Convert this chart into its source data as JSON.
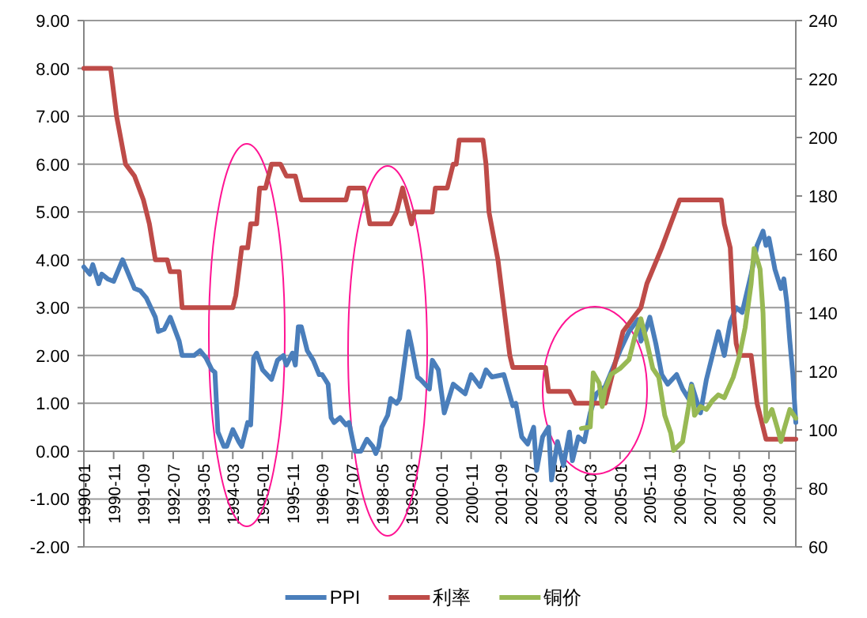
{
  "chart_data": {
    "type": "line",
    "xlim": [
      "1990-01",
      "2009-12"
    ],
    "xticks": [
      "1990-01",
      "1990-11",
      "1991-09",
      "1992-07",
      "1993-05",
      "1994-03",
      "1995-01",
      "1995-11",
      "1996-09",
      "1997-07",
      "1998-05",
      "1999-03",
      "2000-01",
      "2000-11",
      "2001-09",
      "2002-07",
      "2003-05",
      "2004-03",
      "2005-01",
      "2005-11",
      "2006-09",
      "2007-07",
      "2008-05",
      "2009-03"
    ],
    "ylim": [
      -2,
      9
    ],
    "yticks": [
      {
        "value": -2,
        "label": "-2.00"
      },
      {
        "value": -1,
        "label": "-1.00"
      },
      {
        "value": 0,
        "label": "0.00"
      },
      {
        "value": 1,
        "label": "1.00"
      },
      {
        "value": 2,
        "label": "2.00"
      },
      {
        "value": 3,
        "label": "3.00"
      },
      {
        "value": 4,
        "label": "4.00"
      },
      {
        "value": 5,
        "label": "5.00"
      },
      {
        "value": 6,
        "label": "6.00"
      },
      {
        "value": 7,
        "label": "7.00"
      },
      {
        "value": 8,
        "label": "8.00"
      },
      {
        "value": 9,
        "label": "9.00"
      }
    ],
    "y2lim": [
      60,
      240
    ],
    "y2ticks": [
      60,
      80,
      100,
      120,
      140,
      160,
      180,
      200,
      220,
      240
    ],
    "grid": "y",
    "legend": "bottom",
    "series": [
      {
        "name": "PPI",
        "color": "#4a7ebb",
        "x": [
          "1990-01",
          "1990-03",
          "1990-04",
          "1990-06",
          "1990-07",
          "1990-09",
          "1990-11",
          "1991-02",
          "1991-03",
          "1991-06",
          "1991-08",
          "1991-10",
          "1992-01",
          "1992-02",
          "1992-04",
          "1992-06",
          "1992-09",
          "1992-10",
          "1993-02",
          "1993-04",
          "1993-06",
          "1993-08",
          "1993-09",
          "1993-10",
          "1993-12",
          "1994-01",
          "1994-03",
          "1994-05",
          "1994-06",
          "1994-08",
          "1994-09",
          "1994-10",
          "1994-11",
          "1995-01",
          "1995-04",
          "1995-06",
          "1995-08",
          "1995-09",
          "1995-11",
          "1995-12",
          "1996-01",
          "1996-02",
          "1996-04",
          "1996-06",
          "1996-08",
          "1996-09",
          "1996-11",
          "1996-12",
          "1997-01",
          "1997-03",
          "1997-05",
          "1997-06",
          "1997-08",
          "1997-10",
          "1997-12",
          "1998-02",
          "1998-03",
          "1998-04",
          "1998-05",
          "1998-07",
          "1998-08",
          "1998-10",
          "1998-11",
          "1999-02",
          "1999-03",
          "1999-05",
          "1999-06",
          "1999-09",
          "1999-10",
          "1999-12",
          "2000-02",
          "2000-05",
          "2000-09",
          "2000-11",
          "2001-02",
          "2001-04",
          "2001-06",
          "2001-10",
          "2002-01",
          "2002-02",
          "2002-04",
          "2002-06",
          "2002-08",
          "2002-09",
          "2002-11",
          "2003-01",
          "2003-02",
          "2003-04",
          "2003-06",
          "2003-08",
          "2003-09",
          "2003-11",
          "2004-01",
          "2004-03",
          "2004-05",
          "2004-08",
          "2004-11",
          "2005-01",
          "2005-04",
          "2005-07",
          "2005-08",
          "2005-10",
          "2005-11",
          "2006-01",
          "2006-03",
          "2006-05",
          "2006-08",
          "2006-10",
          "2006-12",
          "2007-01",
          "2007-04",
          "2007-06",
          "2007-08",
          "2007-10",
          "2007-12",
          "2008-02",
          "2008-04",
          "2008-06",
          "2008-09",
          "2008-11",
          "2009-01",
          "2009-02",
          "2009-03",
          "2009-05",
          "2009-07",
          "2009-08",
          "2009-09",
          "2009-10",
          "2009-11",
          "2009-12"
        ],
        "values": [
          3.85,
          3.7,
          3.9,
          3.5,
          3.7,
          3.6,
          3.55,
          4.0,
          3.85,
          3.4,
          3.35,
          3.2,
          2.8,
          2.5,
          2.55,
          2.8,
          2.3,
          2.0,
          2.0,
          2.1,
          1.95,
          1.7,
          1.65,
          0.4,
          0.1,
          0.1,
          0.45,
          0.2,
          0.1,
          0.6,
          0.55,
          1.95,
          2.05,
          1.7,
          1.5,
          1.9,
          2.0,
          1.8,
          2.05,
          1.8,
          2.6,
          2.6,
          2.1,
          1.9,
          1.6,
          1.6,
          1.4,
          0.7,
          0.6,
          0.7,
          0.55,
          0.6,
          0.0,
          0.0,
          0.25,
          0.1,
          -0.05,
          0.1,
          0.5,
          0.75,
          1.1,
          1.0,
          1.1,
          2.5,
          2.2,
          1.55,
          1.5,
          1.3,
          1.9,
          1.7,
          0.8,
          1.4,
          1.2,
          1.6,
          1.35,
          1.7,
          1.55,
          1.6,
          0.95,
          1.0,
          0.3,
          0.15,
          0.5,
          -0.4,
          0.3,
          0.5,
          -0.6,
          0.2,
          -0.3,
          0.4,
          -0.2,
          0.3,
          0.2,
          0.8,
          1.2,
          1.35,
          1.8,
          2.1,
          2.5,
          2.75,
          2.3,
          2.6,
          2.8,
          2.25,
          1.6,
          1.4,
          1.6,
          1.3,
          1.1,
          1.4,
          0.8,
          1.5,
          2.0,
          2.5,
          2.0,
          2.7,
          3.0,
          2.9,
          3.7,
          4.3,
          4.6,
          4.3,
          4.45,
          3.8,
          3.4,
          3.6,
          3.1,
          2.3,
          1.6,
          0.6
        ]
      },
      {
        "name": "利率",
        "color": "#be4b48",
        "x": [
          "1990-01",
          "1990-10",
          "1990-12",
          "1991-03",
          "1991-06",
          "1991-09",
          "1991-11",
          "1992-01",
          "1992-05",
          "1992-06",
          "1992-09",
          "1992-10",
          "1994-03",
          "1994-04",
          "1994-06",
          "1994-08",
          "1994-09",
          "1994-11",
          "1994-12",
          "1995-02",
          "1995-04",
          "1995-07",
          "1995-09",
          "1995-12",
          "1996-02",
          "1997-05",
          "1997-06",
          "1997-11",
          "1998-01",
          "1998-08",
          "1998-10",
          "1998-12",
          "1999-03",
          "1999-04",
          "1999-10",
          "1999-11",
          "2000-03",
          "2000-05",
          "2000-06",
          "2000-07",
          "2001-03",
          "2001-04",
          "2001-05",
          "2001-08",
          "2001-10",
          "2001-12",
          "2002-01",
          "2002-12",
          "2003-01",
          "2003-08",
          "2003-10",
          "2004-08",
          "2005-02",
          "2005-08",
          "2005-10",
          "2006-03",
          "2006-06",
          "2006-09",
          "2007-11",
          "2007-12",
          "2008-02",
          "2008-03",
          "2008-04",
          "2008-05",
          "2008-09",
          "2008-11",
          "2009-02",
          "2009-12"
        ],
        "values": [
          8.0,
          8.0,
          7.0,
          6.0,
          5.75,
          5.25,
          4.75,
          4.0,
          4.0,
          3.75,
          3.75,
          3.0,
          3.0,
          3.25,
          4.25,
          4.25,
          4.75,
          4.75,
          5.5,
          5.5,
          6.0,
          6.0,
          5.75,
          5.75,
          5.25,
          5.25,
          5.5,
          5.5,
          4.75,
          4.75,
          5.0,
          5.5,
          4.75,
          5.0,
          5.0,
          5.5,
          5.5,
          6.0,
          6.0,
          6.5,
          6.5,
          6.0,
          5.0,
          4.0,
          3.0,
          2.0,
          1.75,
          1.75,
          1.25,
          1.25,
          1.0,
          1.0,
          2.5,
          3.0,
          3.5,
          4.25,
          4.75,
          5.25,
          5.25,
          4.75,
          4.25,
          3.0,
          2.25,
          2.0,
          2.0,
          1.0,
          0.25,
          0.25
        ]
      },
      {
        "name": "铜价",
        "color": "#98b954",
        "axis": "y2",
        "x": [
          "2003-12",
          "2004-03",
          "2004-04",
          "2004-06",
          "2004-07",
          "2004-08",
          "2004-10",
          "2005-01",
          "2005-04",
          "2005-06",
          "2005-08",
          "2005-10",
          "2005-12",
          "2006-02",
          "2006-04",
          "2006-06",
          "2006-07",
          "2006-10",
          "2006-12",
          "2007-01",
          "2007-02",
          "2007-04",
          "2007-06",
          "2007-08",
          "2007-10",
          "2007-12",
          "2008-03",
          "2008-05",
          "2008-07",
          "2008-09",
          "2008-10",
          "2008-12",
          "2009-01",
          "2009-02",
          "2009-04",
          "2009-06",
          "2009-07",
          "2009-08",
          "2009-10",
          "2009-12"
        ],
        "values": [
          100.5,
          101,
          119.5,
          116,
          108,
          114,
          119,
          121,
          124,
          132,
          138,
          130,
          121,
          118,
          105,
          99,
          93,
          96,
          108,
          115,
          105,
          108,
          107,
          110,
          112,
          111,
          118,
          125,
          135,
          150,
          162,
          155,
          140,
          103,
          107,
          100,
          96,
          100,
          107,
          104
        ]
      }
    ]
  }
}
